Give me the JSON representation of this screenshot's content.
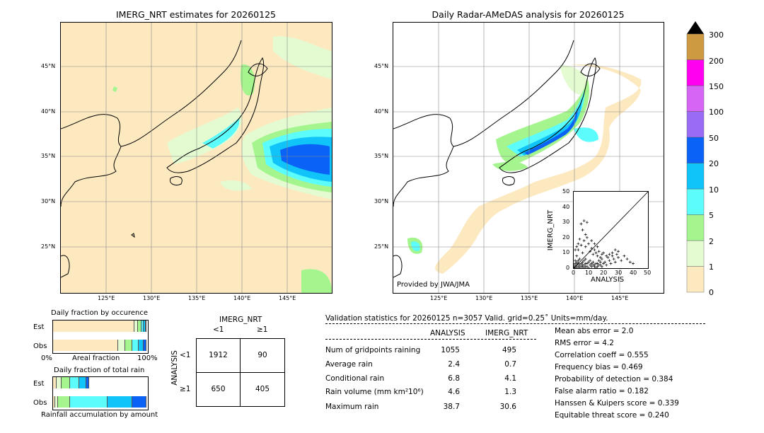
{
  "left_map": {
    "title": "IMERG_NRT estimates for 20260125",
    "lat_labels": [
      "45°N",
      "40°N",
      "35°N",
      "30°N",
      "25°N"
    ],
    "lon_labels": [
      "125°E",
      "130°E",
      "135°E",
      "140°E",
      "145°E"
    ]
  },
  "right_map": {
    "title": "Daily Radar-AMeDAS analysis for 20260125",
    "lat_labels": [
      "45°N",
      "40°N",
      "35°N",
      "30°N",
      "25°N"
    ],
    "lon_labels": [
      "125°E",
      "130°E",
      "135°E",
      "140°E",
      "145°E"
    ],
    "credit": "Provided by JWA/JMA"
  },
  "colorbar": {
    "ticks": [
      "0",
      "1",
      "2",
      "5",
      "10",
      "20",
      "50",
      "100",
      "150",
      "200",
      "300"
    ],
    "colors": [
      "#fde9c0",
      "#e4fbd2",
      "#a5f58f",
      "#5cfcfc",
      "#10c4f9",
      "#0a62f7",
      "#9a6cf5",
      "#d664f5",
      "#ff00f0",
      "#cd9a41"
    ]
  },
  "chart_data": [
    {
      "type": "scatter",
      "title": "",
      "xlabel": "ANALYSIS",
      "ylabel": "IMERG_NRT",
      "xlim": [
        0,
        50
      ],
      "ylim": [
        0,
        50
      ],
      "x_ticks": [
        "0",
        "10",
        "20",
        "30",
        "40",
        "50"
      ],
      "y_ticks": [
        "0",
        "10",
        "20",
        "30",
        "40",
        "50"
      ],
      "points": [
        [
          1,
          0
        ],
        [
          2,
          0
        ],
        [
          3,
          1
        ],
        [
          4,
          0
        ],
        [
          5,
          1
        ],
        [
          6,
          2
        ],
        [
          7,
          0
        ],
        [
          8,
          1
        ],
        [
          9,
          3
        ],
        [
          10,
          0
        ],
        [
          11,
          2
        ],
        [
          12,
          1
        ],
        [
          13,
          4
        ],
        [
          14,
          2
        ],
        [
          15,
          3
        ],
        [
          16,
          1
        ],
        [
          17,
          5
        ],
        [
          18,
          2
        ],
        [
          19,
          6
        ],
        [
          20,
          3
        ],
        [
          21,
          4
        ],
        [
          22,
          2
        ],
        [
          23,
          7
        ],
        [
          24,
          5
        ],
        [
          25,
          3
        ],
        [
          26,
          8
        ],
        [
          27,
          6
        ],
        [
          28,
          4
        ],
        [
          29,
          9
        ],
        [
          30,
          7
        ],
        [
          32,
          5
        ],
        [
          34,
          8
        ],
        [
          36,
          6
        ],
        [
          38,
          4
        ],
        [
          40,
          3
        ],
        [
          26,
          10
        ],
        [
          28,
          12
        ],
        [
          30,
          11
        ],
        [
          24,
          9
        ],
        [
          22,
          8
        ],
        [
          1,
          5
        ],
        [
          2,
          8
        ],
        [
          3,
          12
        ],
        [
          4,
          6
        ],
        [
          5,
          15
        ],
        [
          6,
          10
        ],
        [
          7,
          18
        ],
        [
          8,
          14
        ],
        [
          9,
          20
        ],
        [
          10,
          16
        ],
        [
          11,
          11
        ],
        [
          12,
          13
        ],
        [
          13,
          9
        ],
        [
          14,
          12
        ],
        [
          15,
          10
        ],
        [
          16,
          8
        ],
        [
          17,
          11
        ],
        [
          18,
          7
        ],
        [
          19,
          9
        ],
        [
          20,
          10
        ],
        [
          5,
          29
        ],
        [
          7,
          31
        ],
        [
          9,
          30
        ],
        [
          6,
          25
        ],
        [
          8,
          22
        ],
        [
          4,
          19
        ],
        [
          3,
          16
        ],
        [
          2,
          14
        ],
        [
          1,
          12
        ],
        [
          12,
          18
        ],
        [
          14,
          16
        ],
        [
          16,
          14
        ],
        [
          6,
          4
        ],
        [
          7,
          5
        ],
        [
          8,
          6
        ],
        [
          3,
          3
        ],
        [
          4,
          2
        ],
        [
          2,
          2
        ],
        [
          1,
          1
        ],
        [
          0,
          0
        ],
        [
          0,
          1
        ],
        [
          0,
          2
        ],
        [
          1,
          3
        ],
        [
          2,
          4
        ],
        [
          3,
          5
        ],
        [
          5,
          3
        ],
        [
          6,
          1
        ],
        [
          7,
          2
        ],
        [
          8,
          3
        ],
        [
          9,
          1
        ],
        [
          10,
          4
        ],
        [
          11,
          5
        ],
        [
          12,
          3
        ],
        [
          13,
          2
        ],
        [
          14,
          1
        ],
        [
          15,
          0
        ],
        [
          16,
          3
        ],
        [
          17,
          2
        ],
        [
          18,
          4
        ],
        [
          19,
          1
        ]
      ]
    },
    {
      "type": "bar",
      "title": "Daily fraction by occurence",
      "rows": [
        "Est",
        "Obs"
      ],
      "xlabel": "Areal fraction",
      "x_ticks": [
        "0%",
        "100%"
      ],
      "series": [
        {
          "name": "Est",
          "values": [
            0.87,
            0.04,
            0.04,
            0.02,
            0.02,
            0.01
          ],
          "colors": [
            "#fde9c0",
            "#e4fbd2",
            "#a5f58f",
            "#5cfcfc",
            "#10c4f9",
            "#0a62f7"
          ]
        },
        {
          "name": "Obs",
          "values": [
            0.7,
            0.07,
            0.08,
            0.07,
            0.05,
            0.03
          ],
          "colors": [
            "#fde9c0",
            "#e4fbd2",
            "#a5f58f",
            "#5cfcfc",
            "#10c4f9",
            "#0a62f7"
          ]
        }
      ]
    },
    {
      "type": "bar",
      "title": "Daily fraction of total rain",
      "rows": [
        "Est",
        "Obs"
      ],
      "xlabel": "Rainfall accumulation by amount",
      "series": [
        {
          "name": "Est",
          "values": [
            0.04,
            0.05,
            0.09,
            0.1,
            0.08,
            0.03
          ],
          "colors": [
            "#fde9c0",
            "#e4fbd2",
            "#a5f58f",
            "#5cfcfc",
            "#10c4f9",
            "#0a62f7"
          ]
        },
        {
          "name": "Obs",
          "values": [
            0.02,
            0.03,
            0.13,
            0.4,
            0.27,
            0.15
          ],
          "colors": [
            "#fde9c0",
            "#e4fbd2",
            "#a5f58f",
            "#5cfcfc",
            "#10c4f9",
            "#0a62f7"
          ]
        }
      ]
    },
    {
      "type": "table",
      "title": "IMERG_NRT",
      "col_labels": [
        "<1",
        "≥1"
      ],
      "row_axis_label": "ANALYSIS",
      "row_labels": [
        "<1",
        "≥1"
      ],
      "cells": [
        [
          "1912",
          "90"
        ],
        [
          "650",
          "405"
        ]
      ]
    }
  ],
  "validation": {
    "header": "Validation statistics for 20260125  n=3057 Valid. grid=0.25˚ Units=mm/day.",
    "col_analysis": "ANALYSIS",
    "col_imerg": "IMERG_NRT",
    "rows": [
      {
        "label": "Num of gridpoints raining",
        "analysis": "1055",
        "imerg": "495"
      },
      {
        "label": "Average rain",
        "analysis": "2.4",
        "imerg": "0.7"
      },
      {
        "label": "Conditional rain",
        "analysis": "6.8",
        "imerg": "4.1"
      },
      {
        "label": "Rain volume (mm km²10⁶)",
        "analysis": "4.6",
        "imerg": "1.3"
      },
      {
        "label": "Maximum rain",
        "analysis": "38.7",
        "imerg": "30.6"
      }
    ],
    "scores": [
      "Mean abs error =    2.0",
      "RMS error =    4.2",
      "Correlation coeff =  0.555",
      "Frequency bias =  0.469",
      "Probability of detection =  0.384",
      "False alarm ratio =  0.182",
      "Hanssen & Kuipers score =  0.339",
      "Equitable threat score =  0.240"
    ]
  }
}
